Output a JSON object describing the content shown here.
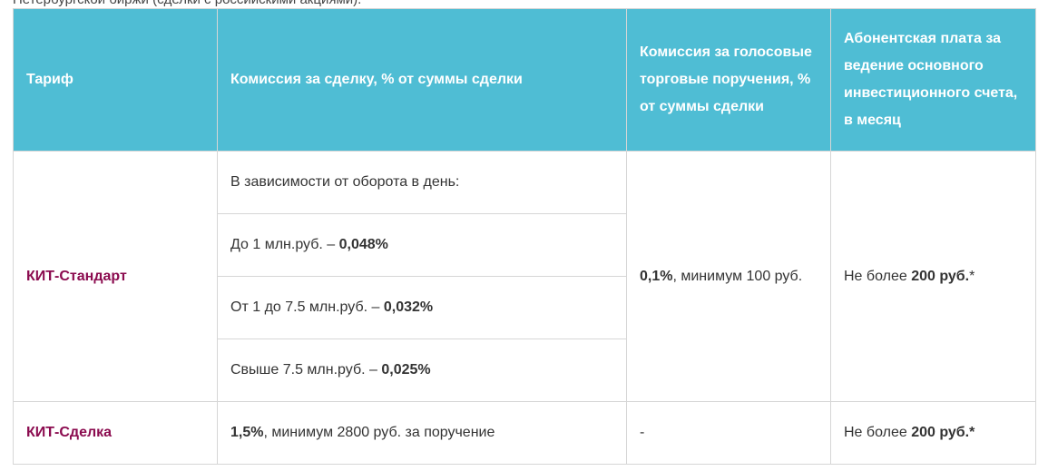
{
  "top_text": "Петербургской биржи (сделки с российскими акциями).",
  "headers": {
    "tariff": "Тариф",
    "commission": "Комиссия за сделку, % от суммы сделки",
    "voice": "Комиссия за голосовые торговые поручения, % от суммы сделки",
    "fee": "Абонентская плата за ведение основного инвестиционного счета, в месяц"
  },
  "rows": {
    "standart": {
      "name": "КИТ-Стандарт",
      "intro": "В зависимости от оборота в день:",
      "tier1_prefix": "До 1 млн.руб. – ",
      "tier1_value": "0,048%",
      "tier2_prefix": "От 1 до 7.5 млн.руб. – ",
      "tier2_value": "0,032%",
      "tier3_prefix": "Свыше 7.5 млн.руб. – ",
      "tier3_value": "0,025%",
      "voice_value": "0,1%",
      "voice_suffix": ", минимум 100 руб.",
      "fee_prefix": "Не более ",
      "fee_value": "200 руб.",
      "fee_suffix": "*"
    },
    "sdelka": {
      "name": "КИТ-Сделка",
      "commission_value": "1,5%",
      "commission_suffix": ", минимум 2800 руб. за поручение",
      "voice": "-",
      "fee_prefix": "Не более ",
      "fee_value": "200 руб.*"
    }
  }
}
